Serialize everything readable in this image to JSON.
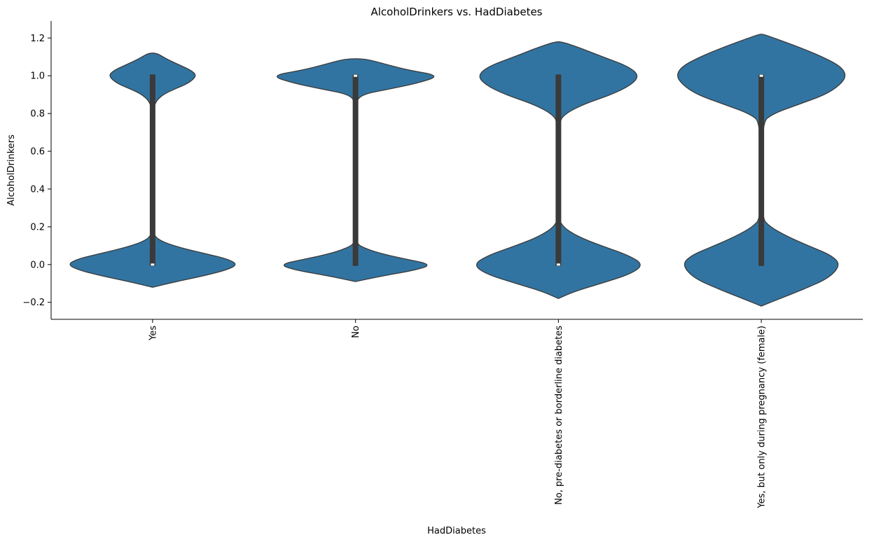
{
  "chart_data": {
    "type": "violin",
    "title": "AlcoholDrinkers vs. HadDiabetes",
    "xlabel": "HadDiabetes",
    "ylabel": "AlcoholDrinkers",
    "ylim": [
      -0.29,
      1.29
    ],
    "yticks": [
      -0.2,
      0.0,
      0.2,
      0.4,
      0.6,
      0.8,
      1.0,
      1.2
    ],
    "ytick_labels": [
      "−0.2",
      "0.0",
      "0.2",
      "0.4",
      "0.6",
      "0.8",
      "1.0",
      "1.2"
    ],
    "categories": [
      "Yes",
      "No",
      "No, pre-diabetes or borderline diabetes",
      "Yes, but only during pregnancy (female)"
    ],
    "violins": [
      {
        "category": "Yes",
        "q1": 0.0,
        "median": 0.0,
        "q3": 1.0,
        "whisker_low": 0.0,
        "whisker_high": 1.0,
        "density": [
          [
            -0.12,
            0.0
          ],
          [
            -0.09,
            0.28
          ],
          [
            -0.06,
            0.6
          ],
          [
            -0.03,
            0.86
          ],
          [
            0.0,
            1.0
          ],
          [
            0.03,
            0.88
          ],
          [
            0.06,
            0.6
          ],
          [
            0.09,
            0.32
          ],
          [
            0.12,
            0.12
          ],
          [
            0.15,
            0.02
          ],
          [
            0.2,
            0.0
          ],
          [
            0.8,
            0.0
          ],
          [
            0.86,
            0.03
          ],
          [
            0.9,
            0.12
          ],
          [
            0.93,
            0.26
          ],
          [
            0.96,
            0.42
          ],
          [
            1.0,
            0.52
          ],
          [
            1.03,
            0.45
          ],
          [
            1.06,
            0.3
          ],
          [
            1.09,
            0.16
          ],
          [
            1.12,
            0.05
          ]
        ]
      },
      {
        "category": "No",
        "q1": 0.0,
        "median": 1.0,
        "q3": 1.0,
        "whisker_low": 0.0,
        "whisker_high": 1.0,
        "density": [
          [
            -0.09,
            0.0
          ],
          [
            -0.06,
            0.32
          ],
          [
            -0.03,
            0.7
          ],
          [
            0.0,
            0.9
          ],
          [
            0.03,
            0.58
          ],
          [
            0.06,
            0.28
          ],
          [
            0.09,
            0.09
          ],
          [
            0.11,
            0.02
          ],
          [
            0.15,
            0.0
          ],
          [
            0.85,
            0.0
          ],
          [
            0.9,
            0.06
          ],
          [
            0.93,
            0.4
          ],
          [
            0.96,
            0.72
          ],
          [
            1.0,
            1.0
          ],
          [
            1.03,
            0.62
          ],
          [
            1.06,
            0.36
          ],
          [
            1.09,
            0.12
          ]
        ]
      },
      {
        "category": "No, pre-diabetes or borderline diabetes",
        "q1": 0.0,
        "median": 0.0,
        "q3": 1.0,
        "whisker_low": 0.0,
        "whisker_high": 1.0,
        "density": [
          [
            -0.18,
            0.0
          ],
          [
            -0.14,
            0.2
          ],
          [
            -0.1,
            0.5
          ],
          [
            -0.05,
            0.85
          ],
          [
            0.0,
            1.0
          ],
          [
            0.05,
            0.82
          ],
          [
            0.1,
            0.5
          ],
          [
            0.15,
            0.22
          ],
          [
            0.2,
            0.05
          ],
          [
            0.25,
            0.0
          ],
          [
            0.75,
            0.0
          ],
          [
            0.8,
            0.08
          ],
          [
            0.85,
            0.3
          ],
          [
            0.9,
            0.62
          ],
          [
            0.95,
            0.85
          ],
          [
            1.0,
            0.95
          ],
          [
            1.05,
            0.82
          ],
          [
            1.1,
            0.52
          ],
          [
            1.15,
            0.24
          ],
          [
            1.18,
            0.04
          ]
        ]
      },
      {
        "category": "Yes, but only during pregnancy (female)",
        "q1": 0.0,
        "median": 1.0,
        "q3": 1.0,
        "whisker_low": 0.0,
        "whisker_high": 1.0,
        "density": [
          [
            -0.22,
            0.0
          ],
          [
            -0.18,
            0.22
          ],
          [
            -0.13,
            0.5
          ],
          [
            -0.07,
            0.8
          ],
          [
            0.0,
            0.93
          ],
          [
            0.05,
            0.82
          ],
          [
            0.1,
            0.55
          ],
          [
            0.15,
            0.3
          ],
          [
            0.2,
            0.1
          ],
          [
            0.25,
            0.0
          ],
          [
            0.75,
            0.0
          ],
          [
            0.8,
            0.14
          ],
          [
            0.85,
            0.45
          ],
          [
            0.9,
            0.75
          ],
          [
            0.95,
            0.92
          ],
          [
            1.0,
            1.0
          ],
          [
            1.05,
            0.93
          ],
          [
            1.1,
            0.72
          ],
          [
            1.15,
            0.45
          ],
          [
            1.2,
            0.15
          ],
          [
            1.22,
            0.02
          ]
        ]
      }
    ],
    "colors": {
      "violin_fill": "#3274a1",
      "violin_edge": "#3a3a3a",
      "box": "#3a3a3a",
      "median": "#ffffff"
    },
    "grid": false,
    "legend": "none"
  }
}
